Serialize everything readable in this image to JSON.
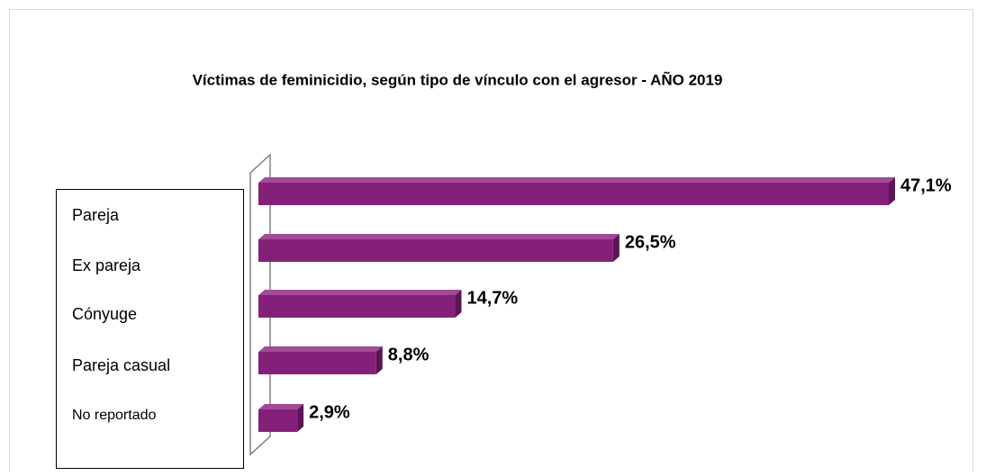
{
  "chart_data": {
    "type": "bar",
    "orientation": "horizontal",
    "title": "Víctimas de feminicidio, según tipo de vínculo con el agresor - AÑO 2019",
    "categories": [
      "Pareja",
      "Ex pareja",
      "Cónyuge",
      "Pareja casual",
      "No reportado"
    ],
    "values": [
      47.1,
      26.5,
      14.7,
      8.8,
      2.9
    ],
    "value_labels": [
      "47,1%",
      "26,5%",
      "14,7%",
      "8,8%",
      "2,9%"
    ],
    "color": "#84207a"
  }
}
